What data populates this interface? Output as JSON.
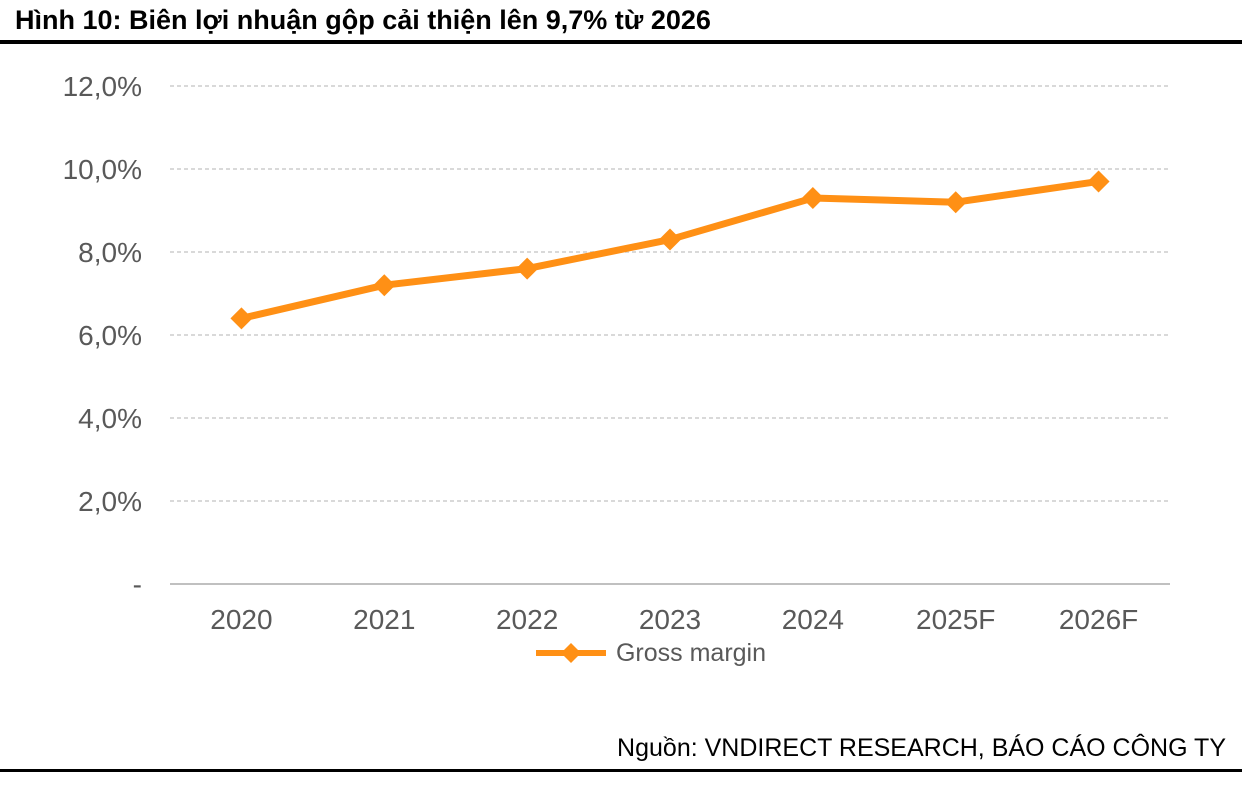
{
  "header": {
    "title": "Hình 10: Biên lợi nhuận gộp cải thiện lên 9,7% từ 2026"
  },
  "footer": {
    "source": "Nguồn: VNDIRECT RESEARCH, BÁO CÁO CÔNG TY"
  },
  "colors": {
    "series": "#FF9015",
    "gridline": "#D9D9D9",
    "axis_line": "#C0C0C0",
    "axis_text": "#595959",
    "rule": "#000000"
  },
  "chart_data": {
    "type": "line",
    "title": "Hình 10: Biên lợi nhuận gộp cải thiện lên 9,7% từ 2026",
    "categories": [
      "2020",
      "2021",
      "2022",
      "2023",
      "2024",
      "2025F",
      "2026F"
    ],
    "series": [
      {
        "name": "Gross margin",
        "color": "#FF9015",
        "marker": "diamond",
        "values": [
          6.4,
          7.2,
          7.6,
          8.3,
          9.3,
          9.2,
          9.7
        ]
      }
    ],
    "xlabel": "",
    "ylabel": "",
    "ylim": [
      0,
      12
    ],
    "ytick_step": 2,
    "ytick_labels": [
      "-",
      "2,0%",
      "4,0%",
      "6,0%",
      "8,0%",
      "10,0%",
      "12,0%"
    ],
    "grid": "horizontal-dashed",
    "legend_position": "bottom-center",
    "value_format": "percent with comma decimal",
    "source": "Nguồn: VNDIRECT RESEARCH, BÁO CÁO CÔNG TY"
  }
}
